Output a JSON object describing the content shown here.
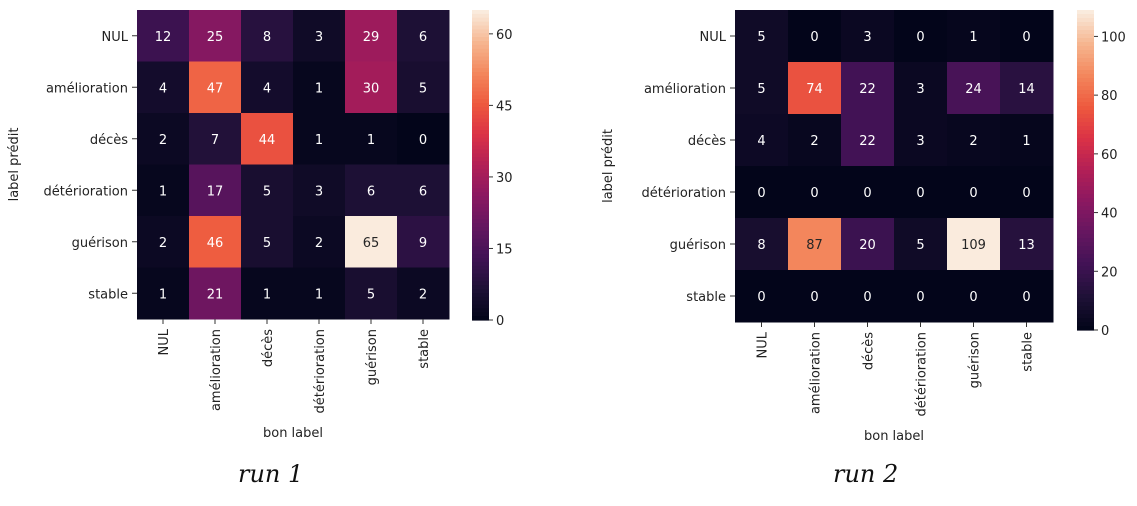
{
  "chart_data": [
    {
      "type": "heatmap",
      "caption": "run 1",
      "xlabel": "bon label",
      "ylabel": "label prédit",
      "x_categories": [
        "NUL",
        "amélioration",
        "décès",
        "détérioration",
        "guérison",
        "stable"
      ],
      "y_categories": [
        "NUL",
        "amélioration",
        "décès",
        "détérioration",
        "guérison",
        "stable"
      ],
      "values": [
        [
          12,
          25,
          8,
          3,
          29,
          6
        ],
        [
          4,
          47,
          4,
          1,
          30,
          5
        ],
        [
          2,
          7,
          44,
          1,
          1,
          0
        ],
        [
          1,
          17,
          5,
          3,
          6,
          6
        ],
        [
          2,
          46,
          5,
          2,
          65,
          9
        ],
        [
          1,
          21,
          1,
          1,
          5,
          2
        ]
      ],
      "colorbar": {
        "min": 0,
        "max": 65,
        "ticks": [
          0,
          15,
          30,
          45,
          60
        ]
      },
      "colormap": "rocket"
    },
    {
      "type": "heatmap",
      "caption": "run 2",
      "xlabel": "bon label",
      "ylabel": "label prédit",
      "x_categories": [
        "NUL",
        "amélioration",
        "décès",
        "détérioration",
        "guérison",
        "stable"
      ],
      "y_categories": [
        "NUL",
        "amélioration",
        "décès",
        "détérioration",
        "guérison",
        "stable"
      ],
      "values": [
        [
          5,
          0,
          3,
          0,
          1,
          0
        ],
        [
          5,
          74,
          22,
          3,
          24,
          14
        ],
        [
          4,
          2,
          22,
          3,
          2,
          1
        ],
        [
          0,
          0,
          0,
          0,
          0,
          0
        ],
        [
          8,
          87,
          20,
          5,
          109,
          13
        ],
        [
          0,
          0,
          0,
          0,
          0,
          0
        ]
      ],
      "colorbar": {
        "min": 0,
        "max": 109,
        "ticks": [
          0,
          20,
          40,
          60,
          80,
          100
        ]
      },
      "colormap": "rocket"
    }
  ]
}
